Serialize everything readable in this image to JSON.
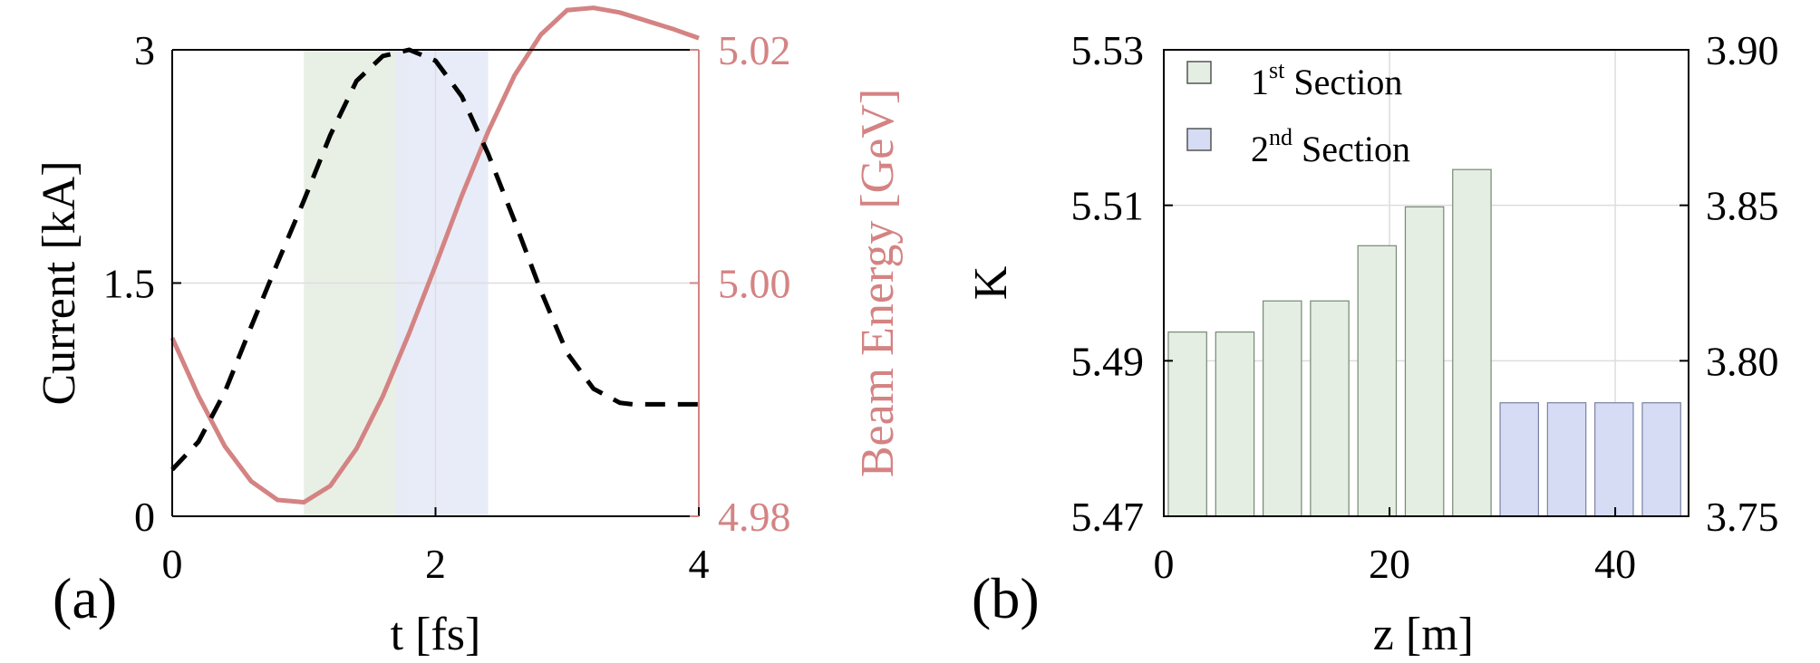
{
  "colors": {
    "current": "#000000",
    "energy": "#d48383",
    "section1_fill": "#e4eee2",
    "section1_stroke": "#778877",
    "section2_fill": "#d5dcf4",
    "section2_stroke": "#7a82a4",
    "shade1": "#e6eee3",
    "shade2": "#e6eaf7",
    "grid": "#dddddd"
  },
  "chart_data": [
    {
      "type": "line",
      "panel_label": "(a)",
      "xlabel": "t [fs]",
      "ylabel": "Current [kA]",
      "y2label": "Beam Energy [GeV]",
      "xlim": [
        0,
        4
      ],
      "ylim": [
        0,
        3
      ],
      "y2lim": [
        4.98,
        5.02
      ],
      "xticks": [
        "0",
        "2",
        "4"
      ],
      "yticks": [
        "0",
        "1.5",
        "3"
      ],
      "y2ticks": [
        "4.98",
        "5.00",
        "5.02"
      ],
      "grid": true,
      "shaded_regions": [
        {
          "x": [
            1.0,
            1.8
          ],
          "color": "shade1"
        },
        {
          "x": [
            1.7,
            2.4
          ],
          "color": "shade2"
        }
      ],
      "series": [
        {
          "axis": "left",
          "style": "dashed",
          "x": [
            0,
            0.2,
            0.4,
            0.6,
            0.8,
            1.0,
            1.2,
            1.4,
            1.6,
            1.8,
            2.0,
            2.2,
            2.4,
            2.6,
            2.8,
            3.0,
            3.2,
            3.4,
            3.5,
            3.6,
            3.8,
            4.0
          ],
          "y": [
            0.3,
            0.48,
            0.8,
            1.22,
            1.63,
            2.03,
            2.45,
            2.8,
            2.96,
            3.0,
            2.93,
            2.7,
            2.33,
            1.9,
            1.45,
            1.05,
            0.82,
            0.73,
            0.72,
            0.72,
            0.72,
            0.72
          ]
        },
        {
          "axis": "right",
          "style": "solid",
          "x": [
            0,
            0.2,
            0.4,
            0.6,
            0.8,
            1.0,
            1.2,
            1.4,
            1.6,
            1.8,
            2.0,
            2.2,
            2.4,
            2.6,
            2.8,
            3.0,
            3.2,
            3.4,
            3.6,
            3.8,
            4.0
          ],
          "y": [
            4.9953,
            4.9903,
            4.986,
            4.983,
            4.9814,
            4.9812,
            4.9826,
            4.9858,
            4.9903,
            4.9957,
            5.0015,
            5.0075,
            5.013,
            5.0178,
            5.0213,
            5.0234,
            5.0236,
            5.0232,
            5.0225,
            5.0218,
            5.021
          ]
        }
      ]
    },
    {
      "type": "bar",
      "panel_label": "(b)",
      "xlabel": "z [m]",
      "ylabel": "K",
      "xlim": [
        0,
        46.5
      ],
      "ylim": [
        5.47,
        5.53
      ],
      "y2lim": [
        3.75,
        3.9
      ],
      "xticks": [
        "0",
        "20",
        "40"
      ],
      "yticks": [
        "5.47",
        "5.49",
        "5.51",
        "5.53"
      ],
      "y2ticks": [
        "3.75",
        "3.80",
        "3.85",
        "3.90"
      ],
      "grid": true,
      "legend_position": "top-left",
      "legend": [
        {
          "pre": "1",
          "sup": "st",
          "post": " Section",
          "color": "section1"
        },
        {
          "pre": "2",
          "sup": "nd",
          "post": " Section",
          "color": "section2"
        }
      ],
      "bars": [
        {
          "z": 2.1,
          "value": 5.4937,
          "axis": "left",
          "section": 1
        },
        {
          "z": 6.3,
          "value": 5.4937,
          "axis": "left",
          "section": 1
        },
        {
          "z": 10.5,
          "value": 5.4977,
          "axis": "left",
          "section": 1
        },
        {
          "z": 14.7,
          "value": 5.4977,
          "axis": "left",
          "section": 1
        },
        {
          "z": 18.9,
          "value": 5.5048,
          "axis": "left",
          "section": 1
        },
        {
          "z": 23.1,
          "value": 5.5098,
          "axis": "left",
          "section": 1
        },
        {
          "z": 27.3,
          "value": 5.5146,
          "axis": "left",
          "section": 1
        },
        {
          "z": 31.5,
          "value": 3.7865,
          "axis": "right",
          "section": 2
        },
        {
          "z": 35.7,
          "value": 3.7865,
          "axis": "right",
          "section": 2
        },
        {
          "z": 39.9,
          "value": 3.7865,
          "axis": "right",
          "section": 2
        },
        {
          "z": 44.1,
          "value": 3.7865,
          "axis": "right",
          "section": 2
        }
      ],
      "bar_width": 3.4
    }
  ]
}
